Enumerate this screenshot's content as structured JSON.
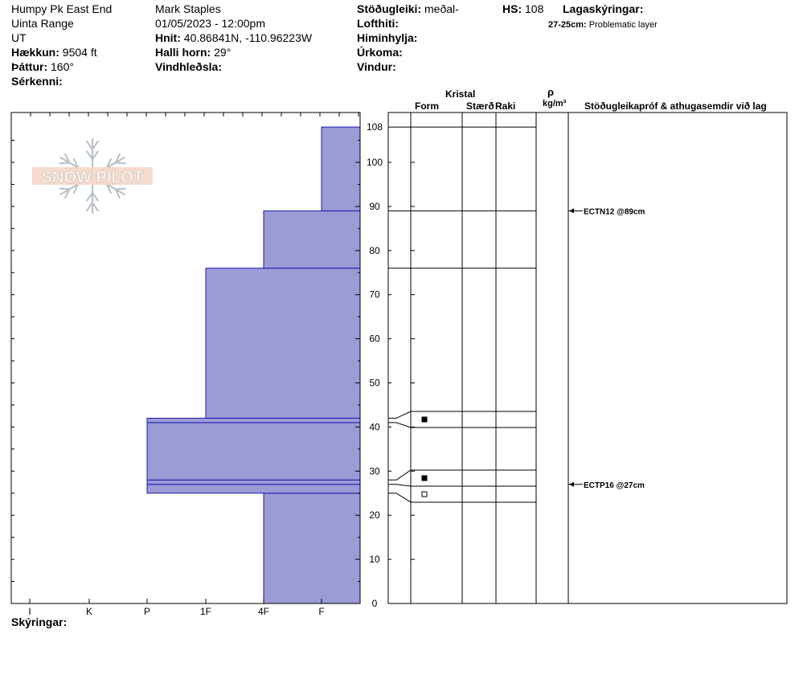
{
  "header": {
    "location": "Humpy Pk East End",
    "range": "Uinta Range",
    "state": "UT",
    "elevation_label": "Hækkun:",
    "elevation_value": "9504 ft",
    "aspect_label": "Þáttur:",
    "aspect_value": "160°",
    "features_label": "Sérkenni:",
    "observer": "Mark Staples",
    "datetime": "01/05/2023 - 12:00pm",
    "coords_label": "Hnit:",
    "coords_value": "40.86841N, -110.96223W",
    "slope_label": "Halli horn:",
    "slope_value": "29°",
    "wind_loading_label": "Vindhleðsla:",
    "stability_label": "Stöðugleiki:",
    "stability_value": "meðal-",
    "air_temp_label": "Lofthiti:",
    "sky_label": "Himinhylja:",
    "precip_label": "Úrkoma:",
    "wind_label": "Vindur:",
    "hs_label": "HS:",
    "hs_value": "108",
    "layer_notes_label": "Lagaskýringar:",
    "layer_note_range": "27-25cm:",
    "layer_note_text": "Problematic layer"
  },
  "columns": {
    "kristal": "Kristal",
    "form": "Form",
    "size": "Stærð",
    "moisture": "Raki",
    "rho": "ρ",
    "density_unit": "kg/m³",
    "tests": "Stöðugleikapróf & athugasemdir við lag"
  },
  "footer": {
    "notes_label": "Skýringar:"
  },
  "logo_text": "SNOW PILOT",
  "colors": {
    "layer_fill": "#9b9bd6",
    "layer_edge": "#1a1ab0"
  },
  "chart_data": {
    "type": "bar",
    "title": "",
    "ylabel": "",
    "ylim": [
      0,
      108
    ],
    "x_categories": [
      "I",
      "K",
      "P",
      "1F",
      "4F",
      "F"
    ],
    "y_ticks": [
      0,
      10,
      20,
      30,
      40,
      50,
      60,
      70,
      80,
      90,
      100,
      108
    ],
    "hardness_layers": [
      {
        "bottom": 0,
        "top": 25,
        "hardness": "4F"
      },
      {
        "bottom": 25,
        "top": 27,
        "hardness": "P"
      },
      {
        "bottom": 27,
        "top": 28,
        "hardness": "P"
      },
      {
        "bottom": 28,
        "top": 41,
        "hardness": "P"
      },
      {
        "bottom": 41,
        "top": 42,
        "hardness": "P"
      },
      {
        "bottom": 42,
        "top": 76,
        "hardness": "1F"
      },
      {
        "bottom": 76,
        "top": 89,
        "hardness": "4F"
      },
      {
        "bottom": 89,
        "top": 108,
        "hardness": "F"
      }
    ],
    "layer_boundaries": [
      108,
      89,
      76,
      42,
      41,
      28,
      27,
      25,
      0
    ],
    "grain_symbols": [
      {
        "depth": 41.5,
        "symbol": "filled-square"
      },
      {
        "depth": 28.5,
        "symbol": "filled-square"
      },
      {
        "depth": 26,
        "symbol": "open-square"
      }
    ],
    "tests": [
      {
        "depth": 89,
        "text": "ECTN12 @89cm"
      },
      {
        "depth": 27,
        "text": "ECTP16 @27cm"
      }
    ]
  }
}
